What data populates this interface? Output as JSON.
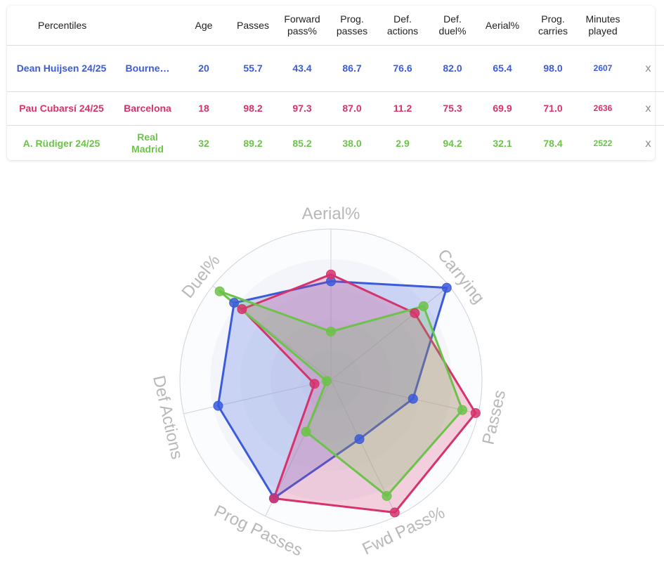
{
  "table": {
    "headers": [
      "Percentiles",
      "",
      "Age",
      "Passes",
      "Forward\npass%",
      "Prog.\npasses",
      "Def.\nactions",
      "Def.\nduel%",
      "Aerial%",
      "Prog.\ncarries",
      "Minutes\nplayed",
      ""
    ],
    "rows": [
      {
        "player": "Dean Huijsen 24/25",
        "team": "Bourne…",
        "age": "20",
        "passes": "55.7",
        "fwd": "43.4",
        "prog": "86.7",
        "defact": "76.6",
        "duel": "82.0",
        "aerial": "65.4",
        "carries": "98.0",
        "minutes": "2607",
        "remove": "x",
        "color": "#3b5bdb"
      },
      {
        "player": "Pau Cubarsí 24/25",
        "team": "Barcelona",
        "age": "18",
        "passes": "98.2",
        "fwd": "97.3",
        "prog": "87.0",
        "defact": "11.2",
        "duel": "75.3",
        "aerial": "69.9",
        "carries": "71.0",
        "minutes": "2636",
        "remove": "x",
        "color": "#d6336c"
      },
      {
        "player": "A. Rüdiger 24/25",
        "team": "Real\nMadrid",
        "age": "32",
        "passes": "89.2",
        "fwd": "85.2",
        "prog": "38.0",
        "defact": "2.9",
        "duel": "94.2",
        "aerial": "32.1",
        "carries": "78.4",
        "minutes": "2522",
        "remove": "x",
        "color": "#6cc24a"
      }
    ]
  },
  "chart_data": {
    "type": "radar",
    "axes": [
      "Aerial%",
      "Carrying",
      "Passes",
      "Fwd Pass%",
      "Prog Passes",
      "Def Actions",
      "Duel%"
    ],
    "rmax": 100,
    "series": [
      {
        "name": "Dean Huijsen 24/25",
        "color": "#3b5bdb",
        "values": [
          65.4,
          98.0,
          55.7,
          43.4,
          86.7,
          76.6,
          82.0
        ]
      },
      {
        "name": "Pau Cubarsí 24/25",
        "color": "#d6336c",
        "values": [
          69.9,
          71.0,
          98.2,
          97.3,
          87.0,
          11.2,
          75.3
        ]
      },
      {
        "name": "A. Rüdiger 24/25",
        "color": "#6cc24a",
        "values": [
          32.1,
          78.4,
          89.2,
          85.2,
          38.0,
          2.9,
          94.2
        ]
      }
    ],
    "rings": [
      20,
      40,
      60,
      80,
      100
    ]
  }
}
